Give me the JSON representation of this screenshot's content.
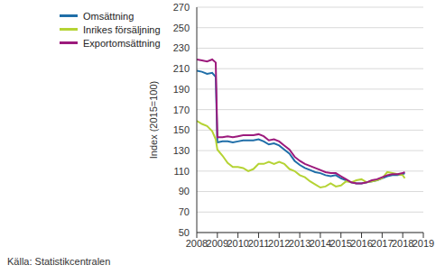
{
  "chart_data": {
    "type": "line",
    "y_label": "Index (2015=100)",
    "annotations": [
      "Källa: Statistikcentralen"
    ],
    "x": [
      2008,
      2008.25,
      2008.5,
      2008.75,
      2008.92,
      2009,
      2009.25,
      2009.5,
      2009.75,
      2010,
      2010.25,
      2010.5,
      2010.75,
      2011,
      2011.25,
      2011.5,
      2011.75,
      2012,
      2012.25,
      2012.5,
      2012.75,
      2013,
      2013.25,
      2013.5,
      2013.75,
      2014,
      2014.25,
      2014.5,
      2014.75,
      2015,
      2015.25,
      2015.5,
      2015.75,
      2016,
      2016.25,
      2016.5,
      2016.75,
      2017,
      2017.25,
      2017.5,
      2017.75,
      2018,
      2018.1
    ],
    "series": [
      {
        "name": "Omsättning",
        "color": "#1f6ea8",
        "values": [
          208,
          207,
          205,
          206,
          202,
          138,
          139,
          139,
          138,
          139,
          140,
          140,
          140,
          141,
          139,
          136,
          137,
          135,
          131,
          127,
          120,
          116,
          113,
          111,
          109,
          108,
          106,
          105,
          106,
          103,
          101,
          99,
          98,
          98,
          99,
          100,
          101,
          103,
          105,
          106,
          106,
          107,
          108
        ]
      },
      {
        "name": "Inrikes försäljning",
        "color": "#b5d334",
        "values": [
          159,
          156,
          154,
          149,
          141,
          131,
          125,
          118,
          114,
          114,
          113,
          110,
          112,
          117,
          117,
          119,
          117,
          119,
          117,
          112,
          110,
          106,
          104,
          100,
          97,
          94,
          95,
          98,
          95,
          96,
          100,
          99,
          101,
          102,
          99,
          100,
          101,
          103,
          109,
          108,
          107,
          106,
          103
        ]
      },
      {
        "name": "Exportomsättning",
        "color": "#9c1a7c",
        "values": [
          219,
          218,
          217,
          219,
          216,
          143,
          143,
          144,
          143,
          144,
          145,
          145,
          145,
          146,
          144,
          140,
          141,
          139,
          135,
          131,
          124,
          120,
          117,
          115,
          113,
          111,
          109,
          108,
          108,
          105,
          102,
          99,
          98,
          98,
          99,
          101,
          102,
          104,
          106,
          107,
          107,
          108,
          109
        ]
      }
    ],
    "xlim": [
      2008,
      2019
    ],
    "xticks": [
      2008,
      2009,
      2010,
      2011,
      2012,
      2013,
      2014,
      2015,
      2016,
      2017,
      2018,
      2019
    ],
    "ylim": [
      50,
      270
    ],
    "yticks": [
      50,
      70,
      90,
      110,
      130,
      150,
      170,
      190,
      210,
      230,
      250,
      270
    ],
    "grid": true,
    "legend": "top-left",
    "marker": "none"
  }
}
